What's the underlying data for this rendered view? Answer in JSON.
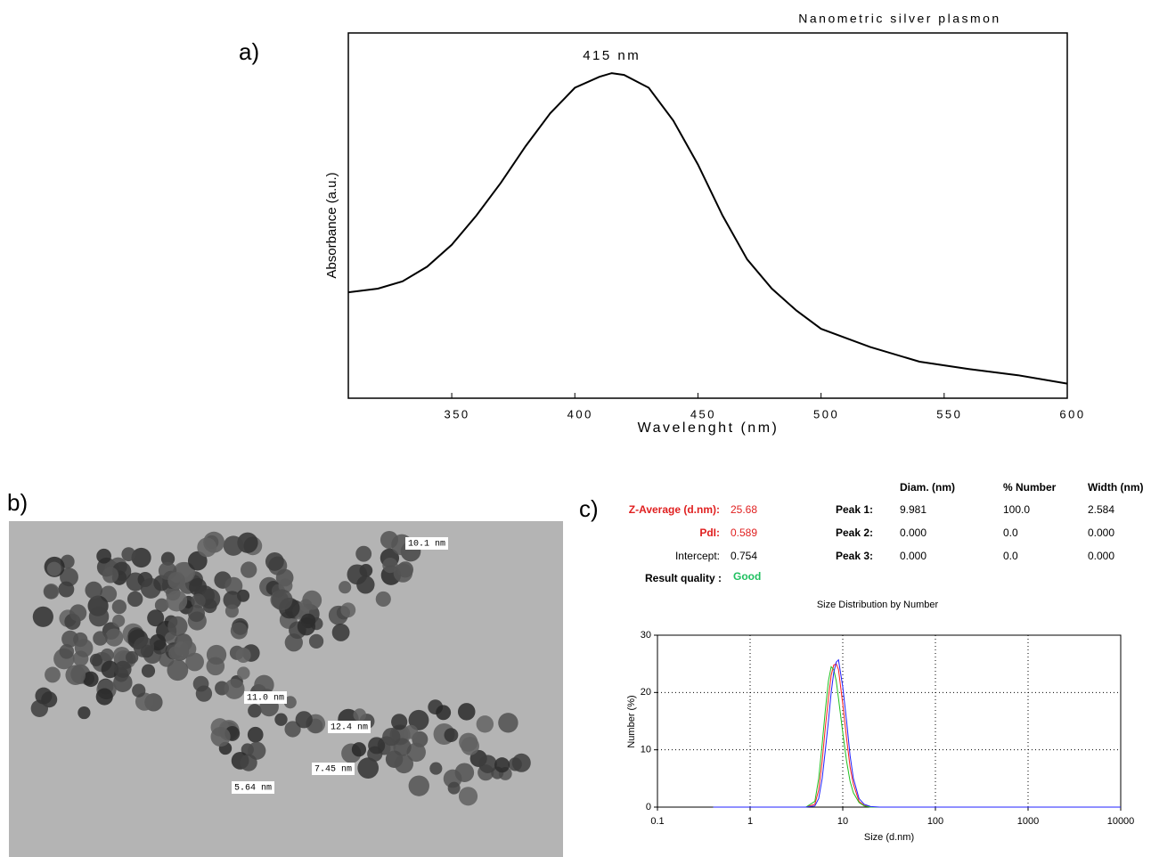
{
  "panel_labels": [
    "a)",
    "b)",
    "c)"
  ],
  "chart_data": [
    {
      "type": "line",
      "title": "Nanometric silver plasmon",
      "x_label": "Wavelenght (nm)",
      "y_label": "Absorbance (a.u.)",
      "annotations": [
        "415 nm"
      ],
      "x": [
        308,
        320,
        330,
        340,
        350,
        360,
        370,
        380,
        390,
        400,
        410,
        415,
        420,
        430,
        440,
        450,
        460,
        470,
        480,
        490,
        500,
        520,
        540,
        560,
        580,
        600
      ],
      "values": [
        0.29,
        0.3,
        0.32,
        0.36,
        0.42,
        0.5,
        0.59,
        0.69,
        0.78,
        0.85,
        0.88,
        0.89,
        0.885,
        0.85,
        0.76,
        0.64,
        0.5,
        0.38,
        0.3,
        0.24,
        0.19,
        0.14,
        0.1,
        0.08,
        0.063,
        0.04
      ],
      "color": "#000000",
      "xlim": [
        308,
        600
      ],
      "xticks": [
        350,
        400,
        450,
        500,
        550,
        600
      ],
      "ylim": [
        0,
        1
      ]
    },
    {
      "type": "line",
      "title": "Size Distribution by Number",
      "x_label": "Size (d.nm)",
      "y_label": "Number (%)",
      "x_log": true,
      "grid": true,
      "x": [
        0.4,
        4,
        5,
        5.5,
        6,
        6.5,
        7,
        7.5,
        8,
        8.5,
        9,
        10,
        11,
        12,
        13,
        15,
        17,
        20,
        25,
        10000
      ],
      "series": [
        {
          "color": "#ff2020",
          "values": [
            0,
            0,
            0.5,
            3,
            8,
            14,
            19,
            23,
            24.8,
            25,
            24,
            18,
            12,
            7,
            4,
            1,
            0.3,
            0,
            0,
            0
          ]
        },
        {
          "color": "#20c020",
          "values": [
            0,
            0,
            1,
            5,
            11,
            17,
            22,
            24.5,
            24,
            22,
            19,
            13,
            8,
            4.5,
            2.5,
            0.8,
            0.2,
            0,
            0,
            0
          ]
        },
        {
          "color": "#2020ff",
          "values": [
            0,
            0,
            0.2,
            1.5,
            5,
            10,
            15,
            20,
            23.5,
            25.3,
            25.7,
            21,
            15,
            9,
            5,
            1.5,
            0.5,
            0.1,
            0,
            0
          ]
        }
      ],
      "xlim": [
        0.1,
        10000
      ],
      "xticks": [
        0.1,
        1,
        10,
        100,
        1000,
        10000
      ],
      "ylim": [
        0,
        30
      ],
      "yticks": [
        0,
        10,
        20,
        30
      ]
    }
  ],
  "tem_image": {
    "annotations": [
      "10.1 nm",
      "11.0 nm",
      "12.4 nm",
      "7.45 nm",
      "5.64 nm"
    ]
  },
  "dls_summary": {
    "z_average": {
      "label": "Z-Average (d.nm):",
      "value": "25.68"
    },
    "pdi": {
      "label": "PdI:",
      "value": "0.589"
    },
    "intercept": {
      "label": "Intercept:",
      "value": "0.754"
    },
    "result_quality": {
      "label": "Result quality :",
      "value": "Good"
    }
  },
  "peak_table": {
    "header": [
      "Diam. (nm)",
      "% Number",
      "Width (nm)"
    ],
    "rows": [
      [
        "Peak 1:",
        "9.981",
        "100.0",
        "2.584"
      ],
      [
        "Peak 2:",
        "0.000",
        "0.0",
        "0.000"
      ],
      [
        "Peak 3:",
        "0.000",
        "0.0",
        "0.000"
      ]
    ]
  }
}
